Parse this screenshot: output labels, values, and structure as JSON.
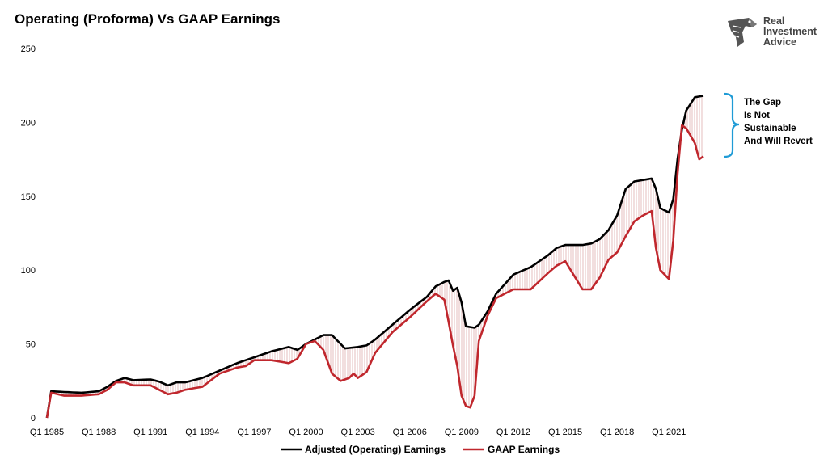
{
  "header": {
    "title": "Operating (Proforma) Vs GAAP Earnings"
  },
  "logo": {
    "lines": [
      "Real",
      "Investment",
      "Advice"
    ],
    "icon": "eagle-head-icon"
  },
  "annotation": {
    "lines": [
      "The Gap",
      "Is Not",
      "Sustainable",
      "And Will Revert"
    ],
    "bracket_color": "#1f9bd6"
  },
  "colors": {
    "operating": "#000000",
    "gaap": "#c0272d",
    "gap_fill": "#f3c9c9",
    "gap_hatch": "#bbbbbb"
  },
  "chart_data": {
    "type": "line",
    "title": "Operating (Proforma) Vs GAAP Earnings",
    "x_start": 1985.0,
    "x_step": 0.25,
    "ylim": [
      0,
      250
    ],
    "yticks": [
      0,
      50,
      100,
      150,
      200,
      250
    ],
    "xticks": [
      {
        "label": "Q1 1985",
        "x": 1985
      },
      {
        "label": "Q1 1988",
        "x": 1988
      },
      {
        "label": "Q1 1991",
        "x": 1991
      },
      {
        "label": "Q1 1994",
        "x": 1994
      },
      {
        "label": "Q1 1997",
        "x": 1997
      },
      {
        "label": "Q1 2000",
        "x": 2000
      },
      {
        "label": "Q1 2003",
        "x": 2003
      },
      {
        "label": "Q1 2006",
        "x": 2006
      },
      {
        "label": "Q1 2009",
        "x": 2009
      },
      {
        "label": "Q1 2012",
        "x": 2012
      },
      {
        "label": "Q1 2015",
        "x": 2015
      },
      {
        "label": "Q1 2018",
        "x": 2018
      },
      {
        "label": "Q1 2021",
        "x": 2021
      }
    ],
    "grid": false,
    "legend": "bottom-center",
    "series": [
      {
        "name": "Adjusted (Operating) Earnings",
        "color": "#000000",
        "knots": [
          [
            1985.0,
            0
          ],
          [
            1985.25,
            18
          ],
          [
            1986.0,
            17.5
          ],
          [
            1987.0,
            17
          ],
          [
            1988.0,
            18
          ],
          [
            1988.5,
            21
          ],
          [
            1989.0,
            25
          ],
          [
            1989.5,
            27
          ],
          [
            1990.0,
            25.5
          ],
          [
            1991.0,
            26
          ],
          [
            1991.5,
            24.5
          ],
          [
            1992.0,
            22
          ],
          [
            1992.5,
            24
          ],
          [
            1993.0,
            24
          ],
          [
            1994.0,
            27
          ],
          [
            1995.0,
            32
          ],
          [
            1996.0,
            37
          ],
          [
            1996.5,
            39
          ],
          [
            1997.0,
            41
          ],
          [
            1998.0,
            45
          ],
          [
            1999.0,
            48
          ],
          [
            1999.5,
            46
          ],
          [
            2000.0,
            50
          ],
          [
            2000.5,
            53
          ],
          [
            2001.0,
            56
          ],
          [
            2001.5,
            56
          ],
          [
            2002.0,
            50
          ],
          [
            2002.25,
            47
          ],
          [
            2003.0,
            48
          ],
          [
            2003.5,
            49
          ],
          [
            2004.0,
            53
          ],
          [
            2005.0,
            63
          ],
          [
            2006.0,
            73
          ],
          [
            2007.0,
            82
          ],
          [
            2007.5,
            89
          ],
          [
            2008.0,
            92
          ],
          [
            2008.25,
            93
          ],
          [
            2008.5,
            86
          ],
          [
            2008.75,
            88
          ],
          [
            2009.0,
            78
          ],
          [
            2009.25,
            62
          ],
          [
            2009.75,
            61
          ],
          [
            2010.0,
            63
          ],
          [
            2010.5,
            72
          ],
          [
            2011.0,
            84
          ],
          [
            2012.0,
            97
          ],
          [
            2013.0,
            102
          ],
          [
            2014.0,
            110
          ],
          [
            2014.5,
            115
          ],
          [
            2015.0,
            117
          ],
          [
            2016.0,
            117
          ],
          [
            2016.5,
            118
          ],
          [
            2017.0,
            121
          ],
          [
            2017.5,
            127
          ],
          [
            2018.0,
            137
          ],
          [
            2018.5,
            155
          ],
          [
            2019.0,
            160
          ],
          [
            2019.5,
            161
          ],
          [
            2020.0,
            162
          ],
          [
            2020.25,
            155
          ],
          [
            2020.5,
            142
          ],
          [
            2021.0,
            139
          ],
          [
            2021.25,
            148
          ],
          [
            2021.5,
            175
          ],
          [
            2021.75,
            195
          ],
          [
            2022.0,
            208
          ],
          [
            2022.5,
            217
          ],
          [
            2023.0,
            218
          ]
        ]
      },
      {
        "name": "GAAP Earnings",
        "color": "#c0272d",
        "knots": [
          [
            1985.0,
            0
          ],
          [
            1985.25,
            17
          ],
          [
            1986.0,
            15
          ],
          [
            1987.0,
            15
          ],
          [
            1988.0,
            16
          ],
          [
            1988.5,
            19
          ],
          [
            1989.0,
            24
          ],
          [
            1989.5,
            24
          ],
          [
            1990.0,
            22
          ],
          [
            1991.0,
            22
          ],
          [
            1991.5,
            19
          ],
          [
            1992.0,
            16
          ],
          [
            1992.5,
            17
          ],
          [
            1993.0,
            19
          ],
          [
            1994.0,
            21
          ],
          [
            1995.0,
            30
          ],
          [
            1996.0,
            34
          ],
          [
            1996.5,
            35
          ],
          [
            1997.0,
            39
          ],
          [
            1998.0,
            39
          ],
          [
            1999.0,
            37
          ],
          [
            1999.5,
            40
          ],
          [
            2000.0,
            50
          ],
          [
            2000.5,
            52
          ],
          [
            2001.0,
            46
          ],
          [
            2001.5,
            30
          ],
          [
            2002.0,
            25
          ],
          [
            2002.5,
            27
          ],
          [
            2002.75,
            30
          ],
          [
            2003.0,
            27
          ],
          [
            2003.5,
            31
          ],
          [
            2004.0,
            44
          ],
          [
            2005.0,
            58
          ],
          [
            2006.0,
            68
          ],
          [
            2007.0,
            79
          ],
          [
            2007.5,
            84
          ],
          [
            2008.0,
            80
          ],
          [
            2008.25,
            65
          ],
          [
            2008.5,
            49
          ],
          [
            2008.75,
            35
          ],
          [
            2009.0,
            15
          ],
          [
            2009.25,
            8
          ],
          [
            2009.5,
            7
          ],
          [
            2009.75,
            15
          ],
          [
            2010.0,
            52
          ],
          [
            2010.5,
            69
          ],
          [
            2011.0,
            81
          ],
          [
            2012.0,
            87
          ],
          [
            2013.0,
            87
          ],
          [
            2014.0,
            98
          ],
          [
            2014.5,
            103
          ],
          [
            2015.0,
            106
          ],
          [
            2016.0,
            87
          ],
          [
            2016.5,
            87
          ],
          [
            2017.0,
            95
          ],
          [
            2017.5,
            107
          ],
          [
            2018.0,
            112
          ],
          [
            2018.5,
            123
          ],
          [
            2019.0,
            133
          ],
          [
            2019.5,
            137
          ],
          [
            2020.0,
            140
          ],
          [
            2020.25,
            115
          ],
          [
            2020.5,
            100
          ],
          [
            2021.0,
            94
          ],
          [
            2021.25,
            120
          ],
          [
            2021.5,
            165
          ],
          [
            2021.75,
            198
          ],
          [
            2022.0,
            196
          ],
          [
            2022.5,
            186
          ],
          [
            2022.75,
            175
          ],
          [
            2023.0,
            177
          ]
        ]
      }
    ]
  }
}
